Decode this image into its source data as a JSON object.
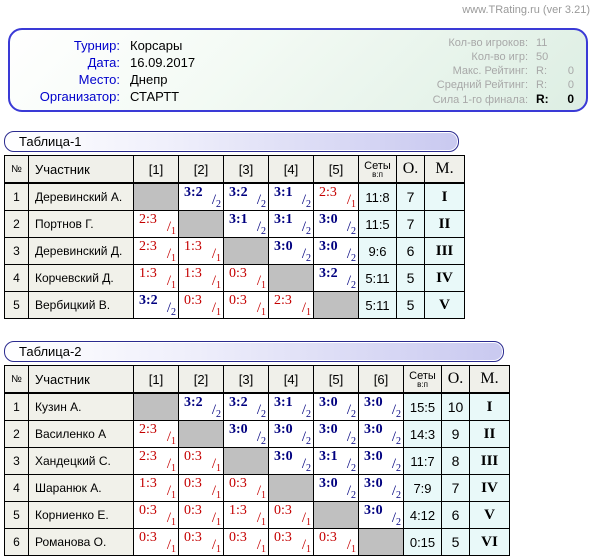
{
  "site_credit": "www.TRating.ru (ver 3.21)",
  "header": {
    "fields": [
      {
        "label": "Турнир:",
        "value": "Корсары"
      },
      {
        "label": "Дата:",
        "value": "16.09.2017"
      },
      {
        "label": "Место:",
        "value": "Днепр"
      },
      {
        "label": "Организатор:",
        "value": "СТАРТТ"
      }
    ],
    "stats": [
      {
        "label": "Кол-во игроков:",
        "v1": "11",
        "v2": "",
        "strong": false
      },
      {
        "label": "Кол-во игр:",
        "v1": "50",
        "v2": "",
        "strong": false
      },
      {
        "label": "Макс. Рейтинг:",
        "v1": "R:",
        "v2": "0",
        "strong": false
      },
      {
        "label": "Средний Рейтинг:",
        "v1": "R:",
        "v2": "0",
        "strong": false
      },
      {
        "label": "Сила 1-го финала:",
        "v1": "R:",
        "v2": "0",
        "strong": true
      }
    ]
  },
  "colors": {
    "win": "#00007f",
    "loss": "#c40000",
    "diagonal": "#c0c0c0",
    "accent_border": "#3a3ad6",
    "label_blue": "#0000cc",
    "muted_gray": "#a8a8a8",
    "totals_bg": "#e9f9f9"
  },
  "tables": [
    {
      "title": "Таблица-1",
      "headers": {
        "num": "№",
        "name": "Участник",
        "sets": "Сеты",
        "sets_sub": "в:п",
        "points": "О.",
        "place": "М."
      },
      "opponents": [
        "[1]",
        "[2]",
        "[3]",
        "[4]",
        "[5]"
      ],
      "rows": [
        {
          "num": "1",
          "name": "Деревинский А.",
          "scores": [
            null,
            {
              "s": "3:2",
              "p": "2",
              "win": true
            },
            {
              "s": "3:2",
              "p": "2",
              "win": true
            },
            {
              "s": "3:1",
              "p": "2",
              "win": true
            },
            {
              "s": "2:3",
              "p": "1",
              "win": false
            }
          ],
          "sets": "11:8",
          "points": "7",
          "place": "I"
        },
        {
          "num": "2",
          "name": "Портнов Г.",
          "scores": [
            {
              "s": "2:3",
              "p": "1",
              "win": false
            },
            null,
            {
              "s": "3:1",
              "p": "2",
              "win": true
            },
            {
              "s": "3:1",
              "p": "2",
              "win": true
            },
            {
              "s": "3:0",
              "p": "2",
              "win": true
            }
          ],
          "sets": "11:5",
          "points": "7",
          "place": "II"
        },
        {
          "num": "3",
          "name": "Деревинский Д.",
          "scores": [
            {
              "s": "2:3",
              "p": "1",
              "win": false
            },
            {
              "s": "1:3",
              "p": "1",
              "win": false
            },
            null,
            {
              "s": "3:0",
              "p": "2",
              "win": true
            },
            {
              "s": "3:0",
              "p": "2",
              "win": true
            }
          ],
          "sets": "9:6",
          "points": "6",
          "place": "III"
        },
        {
          "num": "4",
          "name": "Корчевский Д.",
          "scores": [
            {
              "s": "1:3",
              "p": "1",
              "win": false
            },
            {
              "s": "1:3",
              "p": "1",
              "win": false
            },
            {
              "s": "0:3",
              "p": "1",
              "win": false
            },
            null,
            {
              "s": "3:2",
              "p": "2",
              "win": true
            }
          ],
          "sets": "5:11",
          "points": "5",
          "place": "IV"
        },
        {
          "num": "5",
          "name": "Вербицкий В.",
          "scores": [
            {
              "s": "3:2",
              "p": "2",
              "win": true
            },
            {
              "s": "0:3",
              "p": "1",
              "win": false
            },
            {
              "s": "0:3",
              "p": "1",
              "win": false
            },
            {
              "s": "2:3",
              "p": "1",
              "win": false
            },
            null
          ],
          "sets": "5:11",
          "points": "5",
          "place": "V"
        }
      ]
    },
    {
      "title": "Таблица-2",
      "headers": {
        "num": "№",
        "name": "Участник",
        "sets": "Сеты",
        "sets_sub": "в:п",
        "points": "О.",
        "place": "М."
      },
      "opponents": [
        "[1]",
        "[2]",
        "[3]",
        "[4]",
        "[5]",
        "[6]"
      ],
      "rows": [
        {
          "num": "1",
          "name": "Кузин А.",
          "scores": [
            null,
            {
              "s": "3:2",
              "p": "2",
              "win": true
            },
            {
              "s": "3:2",
              "p": "2",
              "win": true
            },
            {
              "s": "3:1",
              "p": "2",
              "win": true
            },
            {
              "s": "3:0",
              "p": "2",
              "win": true
            },
            {
              "s": "3:0",
              "p": "2",
              "win": true
            }
          ],
          "sets": "15:5",
          "points": "10",
          "place": "I"
        },
        {
          "num": "2",
          "name": "Василенко А",
          "scores": [
            {
              "s": "2:3",
              "p": "1",
              "win": false
            },
            null,
            {
              "s": "3:0",
              "p": "2",
              "win": true
            },
            {
              "s": "3:0",
              "p": "2",
              "win": true
            },
            {
              "s": "3:0",
              "p": "2",
              "win": true
            },
            {
              "s": "3:0",
              "p": "2",
              "win": true
            }
          ],
          "sets": "14:3",
          "points": "9",
          "place": "II"
        },
        {
          "num": "3",
          "name": "Хандецкий С.",
          "scores": [
            {
              "s": "2:3",
              "p": "1",
              "win": false
            },
            {
              "s": "0:3",
              "p": "1",
              "win": false
            },
            null,
            {
              "s": "3:0",
              "p": "2",
              "win": true
            },
            {
              "s": "3:1",
              "p": "2",
              "win": true
            },
            {
              "s": "3:0",
              "p": "2",
              "win": true
            }
          ],
          "sets": "11:7",
          "points": "8",
          "place": "III"
        },
        {
          "num": "4",
          "name": "Шаранюк А.",
          "scores": [
            {
              "s": "1:3",
              "p": "1",
              "win": false
            },
            {
              "s": "0:3",
              "p": "1",
              "win": false
            },
            {
              "s": "0:3",
              "p": "1",
              "win": false
            },
            null,
            {
              "s": "3:0",
              "p": "2",
              "win": true
            },
            {
              "s": "3:0",
              "p": "2",
              "win": true
            }
          ],
          "sets": "7:9",
          "points": "7",
          "place": "IV"
        },
        {
          "num": "5",
          "name": "Корниенко Е.",
          "scores": [
            {
              "s": "0:3",
              "p": "1",
              "win": false
            },
            {
              "s": "0:3",
              "p": "1",
              "win": false
            },
            {
              "s": "1:3",
              "p": "1",
              "win": false
            },
            {
              "s": "0:3",
              "p": "1",
              "win": false
            },
            null,
            {
              "s": "3:0",
              "p": "2",
              "win": true
            }
          ],
          "sets": "4:12",
          "points": "6",
          "place": "V"
        },
        {
          "num": "6",
          "name": "Романова О.",
          "scores": [
            {
              "s": "0:3",
              "p": "1",
              "win": false
            },
            {
              "s": "0:3",
              "p": "1",
              "win": false
            },
            {
              "s": "0:3",
              "p": "1",
              "win": false
            },
            {
              "s": "0:3",
              "p": "1",
              "win": false
            },
            {
              "s": "0:3",
              "p": "1",
              "win": false
            },
            null
          ],
          "sets": "0:15",
          "points": "5",
          "place": "VI"
        }
      ]
    }
  ]
}
